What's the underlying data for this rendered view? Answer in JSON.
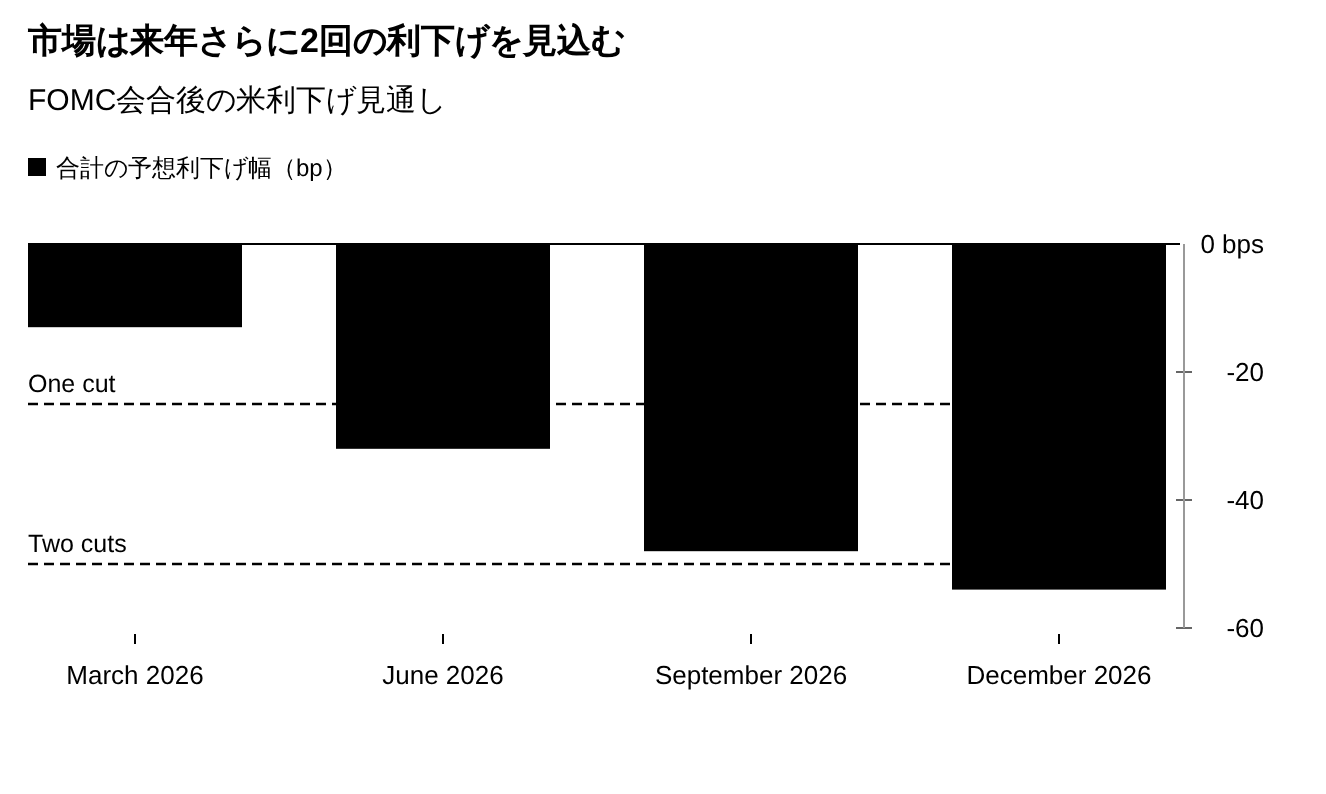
{
  "chart_data": {
    "type": "bar",
    "title": "市場は来年さらに2回の利下げを見込む",
    "subtitle": "FOMC会合後の米利下げ見通し",
    "categories": [
      "March 2026",
      "June 2026",
      "September 2026",
      "December 2026"
    ],
    "series": [
      {
        "name": "合計の予想利下げ幅（bp）",
        "color": "#000000",
        "values": [
          -13,
          -32,
          -48,
          -54
        ]
      }
    ],
    "ylim": [
      -60,
      0
    ],
    "yticks": [
      {
        "value": 0,
        "label": "0 bps"
      },
      -20,
      -40,
      -60
    ],
    "ref_lines": [
      {
        "axis": "y",
        "value": -25,
        "label": "One cut",
        "line_style": "dashed",
        "color": "#000000"
      },
      {
        "axis": "y",
        "value": -50,
        "label": "Two cuts",
        "line_style": "dashed",
        "color": "#000000"
      }
    ],
    "legend": "top left"
  }
}
